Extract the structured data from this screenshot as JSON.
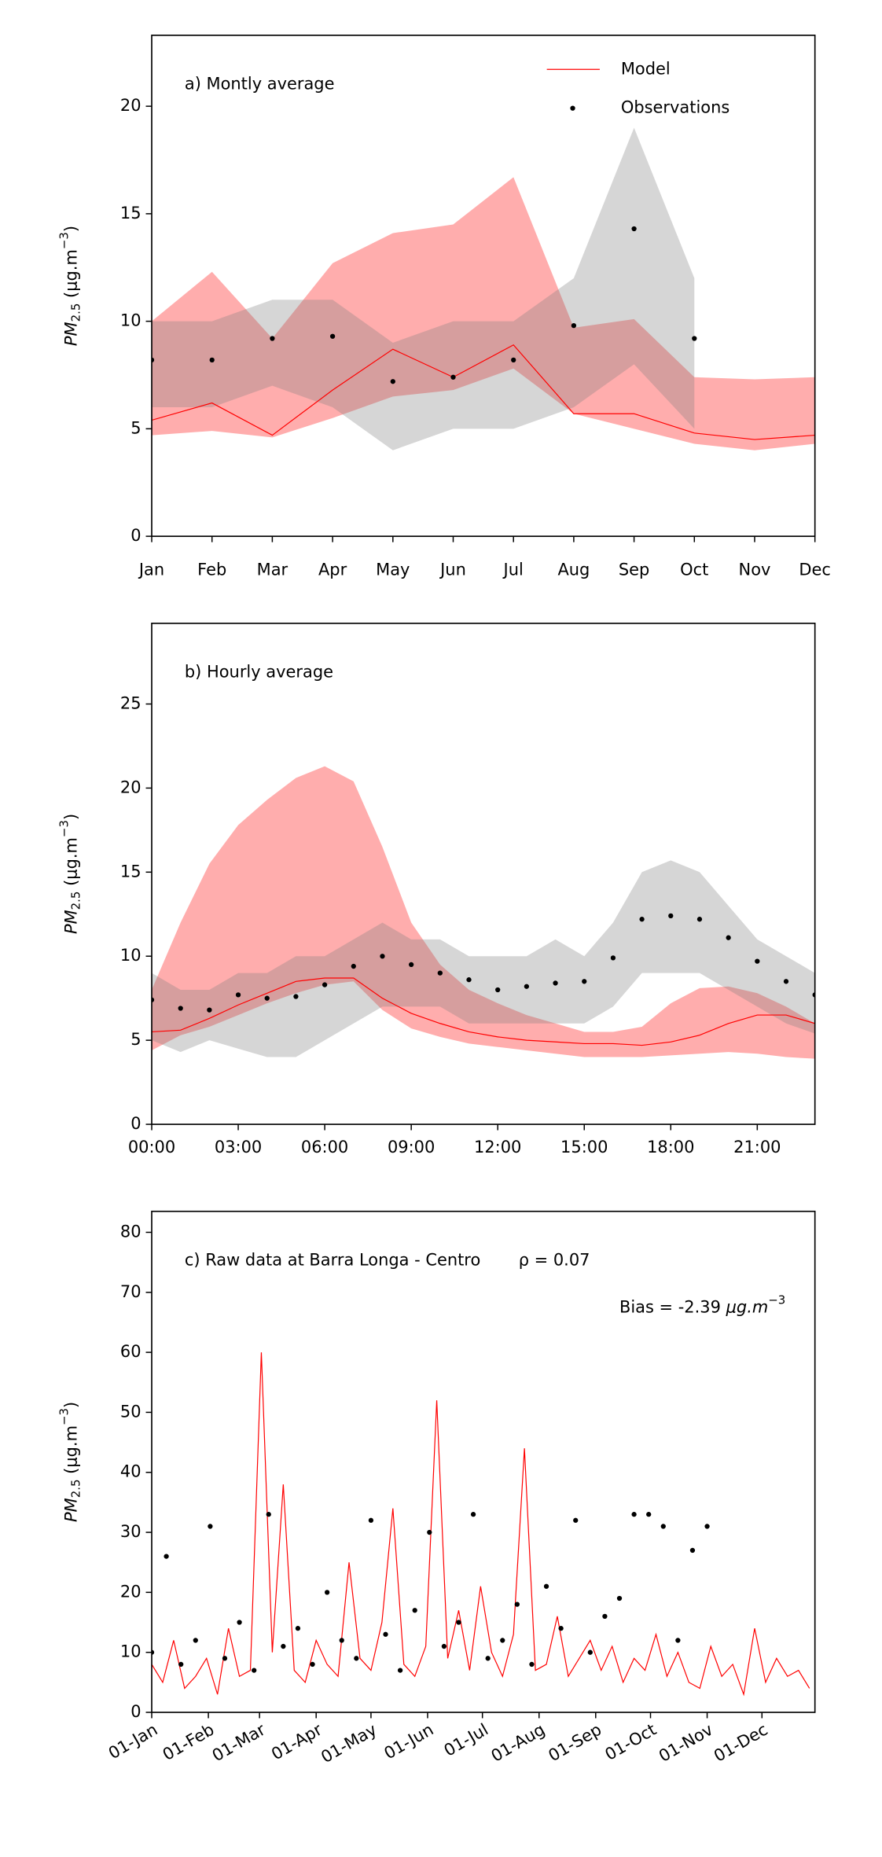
{
  "chart_data": [
    {
      "type": "line",
      "title": "a) Montly average",
      "ylabel": [
        "PM",
        "2.5",
        " (μg.m",
        "−3",
        ")"
      ],
      "categories": [
        "Jan",
        "Feb",
        "Mar",
        "Apr",
        "May",
        "Jun",
        "Jul",
        "Aug",
        "Sep",
        "Oct",
        "Nov",
        "Dec"
      ],
      "ylim": [
        0,
        23.3
      ],
      "yticks": [
        0,
        5,
        10,
        15,
        20
      ],
      "legend": "upper right",
      "series": [
        {
          "name": "Model",
          "color": "#ff0000",
          "band_color": "#ff0000",
          "values": [
            5.4,
            6.2,
            4.7,
            6.8,
            8.7,
            7.4,
            8.9,
            5.7,
            5.7,
            4.8,
            4.5,
            4.7
          ],
          "band_low": [
            4.7,
            4.9,
            4.6,
            5.5,
            6.5,
            6.8,
            7.8,
            5.7,
            5.0,
            4.3,
            4.0,
            4.3
          ],
          "band_high": [
            10.0,
            12.3,
            9.2,
            12.7,
            14.1,
            14.5,
            16.7,
            9.7,
            10.1,
            7.4,
            7.3,
            7.4
          ]
        },
        {
          "name": "Observations",
          "color": "#000000",
          "marker": "dot",
          "band_color": "#808080",
          "values": [
            8.2,
            8.2,
            9.2,
            9.3,
            7.2,
            7.4,
            8.2,
            9.8,
            14.3,
            9.2,
            null,
            null
          ],
          "band_low": [
            6.0,
            6.0,
            7.0,
            6.0,
            4.0,
            5.0,
            5.0,
            6.0,
            8.0,
            5.0,
            null,
            null
          ],
          "band_high": [
            10.0,
            10.0,
            11.0,
            11.0,
            9.0,
            10.0,
            10.0,
            12.0,
            19.0,
            12.0,
            null,
            null
          ]
        }
      ]
    },
    {
      "type": "line",
      "title": "b) Hourly average",
      "ylabel": [
        "PM",
        "2.5",
        " (μg.m",
        "−3",
        ")"
      ],
      "x": [
        0,
        1,
        2,
        3,
        4,
        5,
        6,
        7,
        8,
        9,
        10,
        11,
        12,
        13,
        14,
        15,
        16,
        17,
        18,
        19,
        20,
        21,
        22,
        23
      ],
      "xlim": [
        0,
        23
      ],
      "xticks": [
        {
          "value": 0,
          "label": "00:00"
        },
        {
          "value": 3,
          "label": "03:00"
        },
        {
          "value": 6,
          "label": "06:00"
        },
        {
          "value": 9,
          "label": "09:00"
        },
        {
          "value": 12,
          "label": "12:00"
        },
        {
          "value": 15,
          "label": "15:00"
        },
        {
          "value": 18,
          "label": "18:00"
        },
        {
          "value": 21,
          "label": "21:00"
        }
      ],
      "ylim": [
        0,
        29.8
      ],
      "yticks": [
        0,
        5,
        10,
        15,
        20,
        25
      ],
      "series": [
        {
          "color": "#ff0000",
          "band_color": "#ff0000",
          "values": [
            5.5,
            5.6,
            6.3,
            7.1,
            7.8,
            8.5,
            8.7,
            8.7,
            7.5,
            6.6,
            6.0,
            5.5,
            5.2,
            5.0,
            4.9,
            4.8,
            4.8,
            4.7,
            4.9,
            5.3,
            6.0,
            6.5,
            6.5,
            6.0
          ],
          "band_low": [
            4.4,
            5.3,
            5.8,
            6.5,
            7.2,
            7.8,
            8.3,
            8.5,
            6.8,
            5.7,
            5.2,
            4.8,
            4.6,
            4.4,
            4.2,
            4.0,
            4.0,
            4.0,
            4.1,
            4.2,
            4.3,
            4.2,
            4.0,
            3.9
          ],
          "band_high": [
            8.0,
            12.0,
            15.5,
            17.8,
            19.3,
            20.6,
            21.3,
            20.4,
            16.5,
            12.0,
            9.5,
            8.0,
            7.2,
            6.5,
            6.0,
            5.5,
            5.5,
            5.8,
            7.2,
            8.1,
            8.2,
            7.8,
            7.0,
            6.0
          ]
        },
        {
          "color": "#000000",
          "marker": "dot",
          "band_color": "#808080",
          "values": [
            7.4,
            6.9,
            6.8,
            7.7,
            7.5,
            7.6,
            8.3,
            9.4,
            10.0,
            9.5,
            9.0,
            8.6,
            8.0,
            8.2,
            8.4,
            8.5,
            9.9,
            12.2,
            12.4,
            12.2,
            11.1,
            9.7,
            8.5,
            7.7
          ],
          "band_low": [
            5.0,
            4.3,
            5.0,
            4.5,
            4.0,
            4.0,
            5.0,
            6.0,
            7.0,
            7.0,
            7.0,
            6.0,
            6.0,
            6.0,
            6.0,
            6.0,
            7.0,
            9.0,
            9.0,
            9.0,
            8.0,
            7.0,
            6.0,
            5.4
          ],
          "band_high": [
            9.0,
            8.0,
            8.0,
            9.0,
            9.0,
            10.0,
            10.0,
            11.0,
            12.0,
            11.0,
            11.0,
            10.0,
            10.0,
            10.0,
            11.0,
            10.0,
            12.0,
            15.0,
            15.7,
            15.0,
            13.0,
            11.0,
            10.0,
            9.0
          ]
        }
      ]
    },
    {
      "type": "line",
      "title": "c) Raw data at Barra Longa - Centro",
      "annotations": [
        "ρ = 0.07"
      ],
      "bias": [
        "Bias = -2.39 ",
        "μg.m",
        "−3"
      ],
      "ylabel": [
        "PM",
        "2.5",
        " (μg.m",
        "−3",
        ")"
      ],
      "xlim": [
        0,
        363
      ],
      "xtick_rotation": 30,
      "xticks": [
        {
          "value": 0,
          "label": "01-Jan"
        },
        {
          "value": 31,
          "label": "01-Feb"
        },
        {
          "value": 59,
          "label": "01-Mar"
        },
        {
          "value": 90,
          "label": "01-Apr"
        },
        {
          "value": 120,
          "label": "01-May"
        },
        {
          "value": 151,
          "label": "01-Jun"
        },
        {
          "value": 181,
          "label": "01-Jul"
        },
        {
          "value": 212,
          "label": "01-Aug"
        },
        {
          "value": 243,
          "label": "01-Sep"
        },
        {
          "value": 273,
          "label": "01-Oct"
        },
        {
          "value": 304,
          "label": "01-Nov"
        },
        {
          "value": 334,
          "label": "01-Dec"
        }
      ],
      "ylim": [
        0,
        83.5
      ],
      "yticks": [
        0,
        10,
        20,
        30,
        40,
        50,
        60,
        70,
        80
      ],
      "series": [
        {
          "color": "#ff0000",
          "x": [
            0,
            6,
            12,
            18,
            24,
            30,
            36,
            42,
            48,
            54,
            60,
            66,
            72,
            78,
            84,
            90,
            96,
            102,
            108,
            114,
            120,
            126,
            132,
            138,
            144,
            150,
            156,
            162,
            168,
            174,
            180,
            186,
            192,
            198,
            204,
            210,
            216,
            222,
            228,
            234,
            240,
            246,
            252,
            258,
            264,
            270,
            276,
            282,
            288,
            294,
            300,
            306,
            312,
            318,
            324,
            330,
            336,
            342,
            348,
            354,
            360
          ],
          "values": [
            8,
            5,
            12,
            4,
            6,
            9,
            3,
            14,
            6,
            7,
            60,
            10,
            38,
            7,
            5,
            12,
            8,
            6,
            25,
            9,
            7,
            15,
            34,
            8,
            6,
            11,
            52,
            9,
            17,
            7,
            21,
            10,
            6,
            13,
            44,
            7,
            8,
            16,
            6,
            9,
            12,
            7,
            11,
            5,
            9,
            7,
            13,
            6,
            10,
            5,
            4,
            11,
            6,
            8,
            3,
            14,
            5,
            9,
            6,
            7,
            4
          ]
        },
        {
          "color": "#000000",
          "marker": "dot",
          "x": [
            0,
            8,
            16,
            24,
            32,
            40,
            48,
            56,
            64,
            72,
            80,
            88,
            96,
            104,
            112,
            120,
            128,
            136,
            144,
            152,
            160,
            168,
            176,
            184,
            192,
            200,
            208,
            216,
            224,
            232,
            240,
            248,
            256,
            264,
            272,
            280,
            288,
            296,
            304
          ],
          "values": [
            10,
            26,
            8,
            12,
            31,
            9,
            15,
            7,
            33,
            11,
            14,
            8,
            20,
            12,
            9,
            32,
            13,
            7,
            17,
            30,
            11,
            15,
            33,
            9,
            12,
            18,
            8,
            21,
            14,
            32,
            10,
            16,
            19,
            33,
            33,
            31,
            12,
            27,
            31
          ]
        }
      ]
    }
  ]
}
